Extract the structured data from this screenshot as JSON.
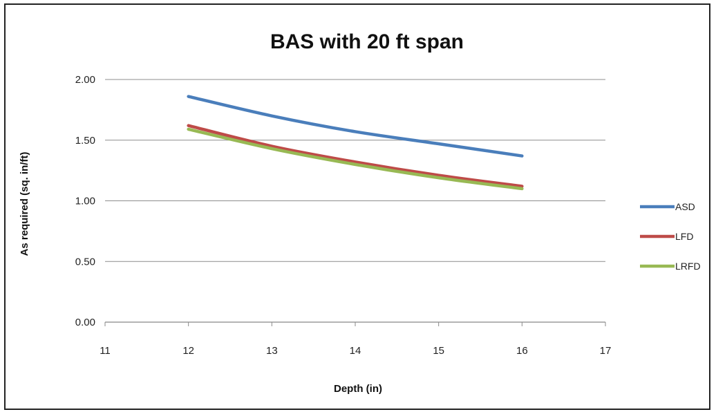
{
  "chart_data": {
    "type": "line",
    "title": "BAS with 20 ft span",
    "xlabel": "Depth (in)",
    "ylabel": "As required (sq. in/ft)",
    "xlim": [
      11,
      17
    ],
    "ylim": [
      0,
      2
    ],
    "x_ticks": [
      "11",
      "12",
      "13",
      "14",
      "15",
      "16",
      "17"
    ],
    "y_ticks": [
      "0.00",
      "0.50",
      "1.00",
      "1.50",
      "2.00"
    ],
    "grid": "horizontal",
    "legend_position": "right",
    "series": [
      {
        "name": "ASD",
        "color": "#4a7ebb",
        "x": [
          12,
          13,
          14,
          15,
          16
        ],
        "y": [
          1.86,
          1.7,
          1.57,
          1.47,
          1.37
        ]
      },
      {
        "name": "LFD",
        "color": "#be4b48",
        "x": [
          12,
          13,
          14,
          15,
          16
        ],
        "y": [
          1.62,
          1.45,
          1.32,
          1.21,
          1.12
        ]
      },
      {
        "name": "LRFD",
        "color": "#98b954",
        "x": [
          12,
          13,
          14,
          15,
          16
        ],
        "y": [
          1.59,
          1.43,
          1.3,
          1.19,
          1.1
        ]
      }
    ]
  }
}
